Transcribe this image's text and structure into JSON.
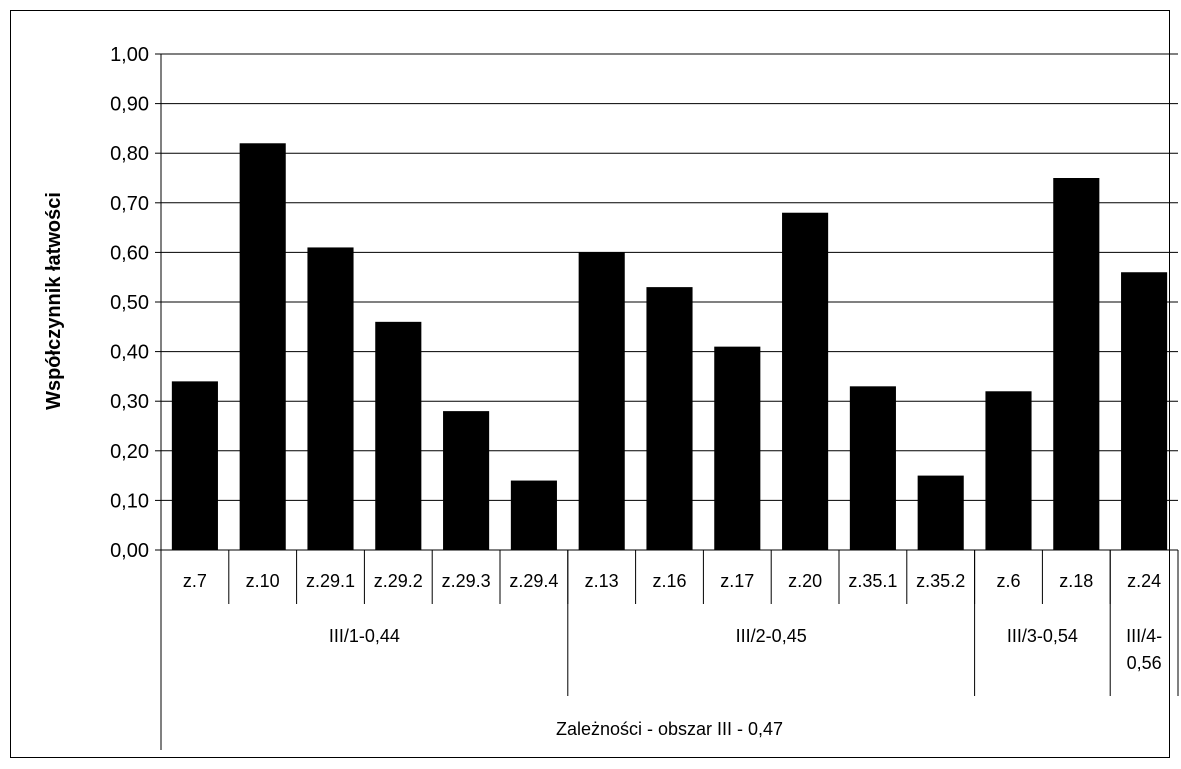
{
  "chart_data": {
    "type": "bar",
    "title": "",
    "ylabel": "Współczynnik łatwości",
    "xlabel": "",
    "ylim": [
      0,
      1
    ],
    "yticks": [
      "0,00",
      "0,10",
      "0,20",
      "0,30",
      "0,40",
      "0,50",
      "0,60",
      "0,70",
      "0,80",
      "0,90",
      "1,00"
    ],
    "grid": true,
    "legend": "none",
    "bar_color": "#000000",
    "categories": [
      "z.7",
      "z.10",
      "z.29.1",
      "z.29.2",
      "z.29.3",
      "z.29.4",
      "z.13",
      "z.16",
      "z.17",
      "z.20",
      "z.35.1",
      "z.35.2",
      "z.6",
      "z.18",
      "z.24"
    ],
    "values": [
      0.34,
      0.82,
      0.61,
      0.46,
      0.28,
      0.14,
      0.6,
      0.53,
      0.41,
      0.68,
      0.33,
      0.15,
      0.32,
      0.75,
      0.56
    ],
    "groups": [
      {
        "label": "III/1-0,44",
        "count": 6
      },
      {
        "label": "III/2-0,45",
        "count": 6
      },
      {
        "label": "III/3-0,54",
        "count": 2
      },
      {
        "label": "III/4-0,56",
        "count": 1,
        "lines": [
          "III/4-",
          "0,56"
        ]
      }
    ],
    "supergroup": {
      "label": "Zależności - obszar III - 0,47"
    }
  }
}
